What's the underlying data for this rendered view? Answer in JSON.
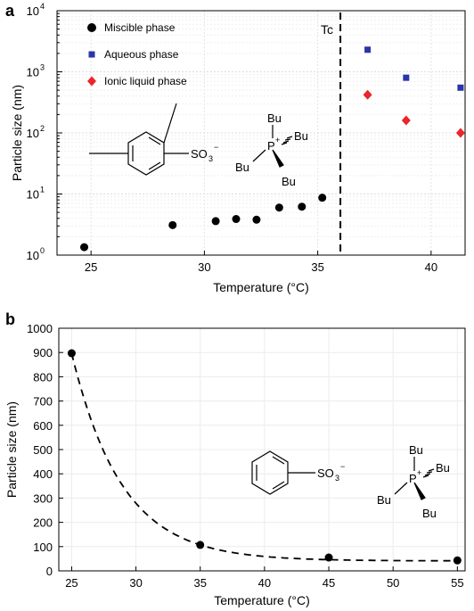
{
  "figure": {
    "panel_a_label": "a",
    "panel_b_label": "b"
  },
  "chart_data": [
    {
      "panel": "a",
      "type": "scatter",
      "xlabel": "Temperature (°C)",
      "ylabel": "Particle size (nm)",
      "xlim": [
        23.5,
        41.5
      ],
      "ylim": [
        1,
        10000
      ],
      "yscale": "log",
      "xticks": [
        "25",
        "30",
        "35",
        "40"
      ],
      "yticks": [
        "10^0",
        "10^1",
        "10^2",
        "10^3",
        "10^4"
      ],
      "grid": true,
      "legend_position": "top-left",
      "series": [
        {
          "name": "Miscible phase",
          "marker": "circle",
          "color": "#000000",
          "x": [
            24.7,
            28.6,
            30.5,
            31.4,
            32.3,
            33.3,
            34.3,
            35.2
          ],
          "y": [
            1.35,
            3.1,
            3.6,
            3.9,
            3.8,
            6.0,
            6.2,
            8.7
          ]
        },
        {
          "name": "Aqueous phase",
          "marker": "square",
          "color": "#2b35a8",
          "x": [
            37.2,
            38.9,
            41.3
          ],
          "y": [
            2300,
            800,
            550
          ]
        },
        {
          "name": "Ionic liquid phase",
          "marker": "diamond",
          "color": "#e8262b",
          "x": [
            37.2,
            38.9,
            41.3
          ],
          "y": [
            420,
            160,
            100
          ]
        }
      ],
      "annotations": [
        {
          "text": "Tc",
          "type": "vline",
          "x": 36.0
        }
      ],
      "structure": {
        "anion_label": "SO",
        "anion_sub": "3",
        "anion_sup": "−",
        "cation_center": "P",
        "cation_sup": "+",
        "substituent": "Bu"
      }
    },
    {
      "panel": "b",
      "type": "scatter",
      "xlabel": "Temperature (°C)",
      "ylabel": "Particle size (nm)",
      "xlim": [
        24,
        55.6
      ],
      "ylim": [
        0,
        1000
      ],
      "xticks": [
        "25",
        "30",
        "35",
        "40",
        "45",
        "50",
        "55"
      ],
      "yticks": [
        "0",
        "100",
        "200",
        "300",
        "400",
        "500",
        "600",
        "700",
        "800",
        "900",
        "1000"
      ],
      "grid": true,
      "series": [
        {
          "marker": "circle",
          "color": "#000000",
          "x": [
            25,
            35,
            45,
            55
          ],
          "y": [
            897,
            107,
            55,
            43
          ]
        }
      ],
      "fit_curve": {
        "style": "dashed",
        "color": "#000000"
      },
      "structure": {
        "anion_label": "SO",
        "anion_sub": "3",
        "anion_sup": "−",
        "cation_center": "P",
        "cation_sup": "+",
        "substituent": "Bu"
      }
    }
  ]
}
